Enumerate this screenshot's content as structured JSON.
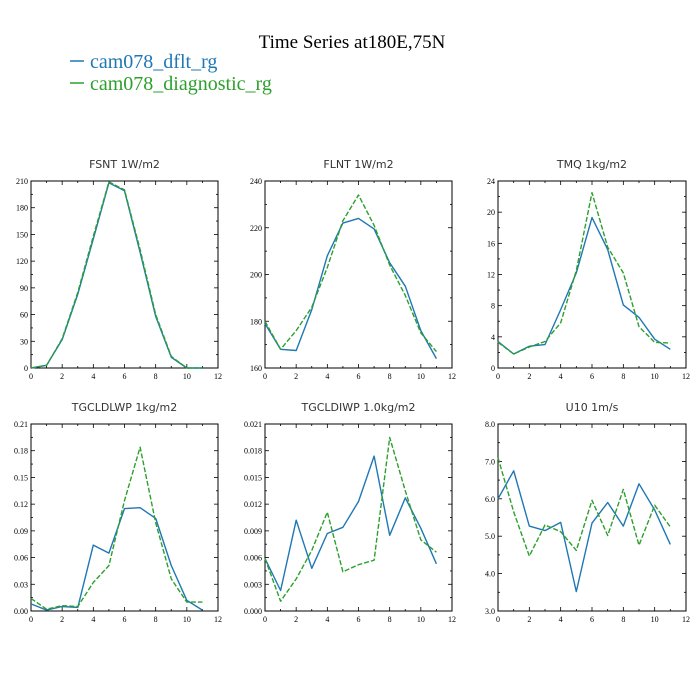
{
  "figure": {
    "title": "Time Series at180E,75N",
    "series_colors": [
      "#1f77b4",
      "#2ca02c"
    ]
  },
  "chart_data": [
    {
      "type": "line",
      "title": "FSNT   1W/m2",
      "xlim": [
        0,
        12
      ],
      "ylim": [
        0,
        210
      ],
      "xticks": [
        0,
        2,
        4,
        6,
        8,
        10,
        12
      ],
      "yticks": [
        0,
        30,
        60,
        90,
        120,
        150,
        180,
        210
      ],
      "ytick_labels": [
        "0",
        "30",
        "60",
        "90",
        "120",
        "150",
        "180",
        "210"
      ],
      "x": [
        0,
        1,
        2,
        3,
        4,
        5,
        6,
        7,
        8,
        9,
        10,
        11
      ],
      "series": [
        {
          "name": "cam078_dflt_rg",
          "color": "#1f77b4",
          "dash": false,
          "values": [
            0,
            3,
            32,
            83,
            145,
            208,
            199,
            130,
            58,
            12,
            0,
            0
          ]
        },
        {
          "name": "cam078_diagnostic_rg",
          "color": "#2ca02c",
          "dash": true,
          "values": [
            0,
            3,
            33,
            85,
            148,
            209,
            200,
            133,
            60,
            13,
            0,
            0
          ]
        }
      ]
    },
    {
      "type": "line",
      "title": "FLNT   1W/m2",
      "xlim": [
        0,
        12
      ],
      "ylim": [
        160,
        240
      ],
      "xticks": [
        0,
        2,
        4,
        6,
        8,
        10,
        12
      ],
      "yticks": [
        160,
        180,
        200,
        220,
        240
      ],
      "ytick_labels": [
        "160",
        "180",
        "200",
        "220",
        "240"
      ],
      "x": [
        0,
        1,
        2,
        3,
        4,
        5,
        6,
        7,
        8,
        9,
        10,
        11
      ],
      "series": [
        {
          "name": "cam078_dflt_rg",
          "color": "#1f77b4",
          "dash": false,
          "values": [
            179,
            168,
            167.5,
            185,
            208,
            222,
            224,
            219.5,
            205,
            195,
            176,
            164
          ]
        },
        {
          "name": "cam078_diagnostic_rg",
          "color": "#2ca02c",
          "dash": true,
          "values": [
            180,
            168,
            176,
            186,
            203,
            223,
            234,
            221,
            204,
            191,
            175,
            167
          ]
        }
      ]
    },
    {
      "type": "line",
      "title": "TMQ   1kg/m2",
      "xlim": [
        0,
        12
      ],
      "ylim": [
        0,
        24
      ],
      "xticks": [
        0,
        2,
        4,
        6,
        8,
        10,
        12
      ],
      "yticks": [
        0,
        4,
        8,
        12,
        16,
        20,
        24
      ],
      "ytick_labels": [
        "0",
        "4",
        "8",
        "12",
        "16",
        "20",
        "24"
      ],
      "x": [
        0,
        1,
        2,
        3,
        4,
        5,
        6,
        7,
        8,
        9,
        10,
        11
      ],
      "series": [
        {
          "name": "cam078_dflt_rg",
          "color": "#1f77b4",
          "dash": false,
          "values": [
            3.4,
            1.8,
            2.8,
            3.0,
            7.5,
            12.2,
            19.3,
            15.2,
            8.1,
            6.5,
            3.7,
            2.4
          ]
        },
        {
          "name": "cam078_diagnostic_rg",
          "color": "#2ca02c",
          "dash": true,
          "values": [
            3.3,
            1.8,
            2.7,
            3.4,
            5.8,
            12.5,
            22.5,
            15.5,
            12.2,
            5.3,
            3.3,
            3.2
          ]
        }
      ]
    },
    {
      "type": "line",
      "title": "TGCLDLWP   1kg/m2",
      "xlim": [
        0,
        12
      ],
      "ylim": [
        0,
        0.21
      ],
      "xticks": [
        0,
        2,
        4,
        6,
        8,
        10,
        12
      ],
      "yticks": [
        0,
        0.03,
        0.06,
        0.09,
        0.12,
        0.15,
        0.18,
        0.21
      ],
      "ytick_labels": [
        "0.00",
        "0.03",
        "0.06",
        "0.09",
        "0.12",
        "0.15",
        "0.18",
        "0.21"
      ],
      "x": [
        0,
        1,
        2,
        3,
        4,
        5,
        6,
        7,
        8,
        9,
        10,
        11
      ],
      "series": [
        {
          "name": "cam078_dflt_rg",
          "color": "#1f77b4",
          "dash": false,
          "values": [
            0.008,
            0.001,
            0.005,
            0.004,
            0.074,
            0.065,
            0.115,
            0.116,
            0.104,
            0.051,
            0.012,
            0.001
          ]
        },
        {
          "name": "cam078_diagnostic_rg",
          "color": "#2ca02c",
          "dash": true,
          "values": [
            0.014,
            0.002,
            0.006,
            0.005,
            0.032,
            0.051,
            0.124,
            0.184,
            0.099,
            0.036,
            0.01,
            0.01
          ]
        }
      ]
    },
    {
      "type": "line",
      "title": "TGCLDIWP   1.0kg/m2",
      "xlim": [
        0,
        12
      ],
      "ylim": [
        0,
        0.021
      ],
      "xticks": [
        0,
        2,
        4,
        6,
        8,
        10,
        12
      ],
      "yticks": [
        0,
        0.003,
        0.006,
        0.009,
        0.012,
        0.015,
        0.018,
        0.021
      ],
      "ytick_labels": [
        "0.000",
        "0.003",
        "0.006",
        "0.009",
        "0.012",
        "0.015",
        "0.018",
        "0.021"
      ],
      "x": [
        0,
        1,
        2,
        3,
        4,
        5,
        6,
        7,
        8,
        9,
        10,
        11
      ],
      "series": [
        {
          "name": "cam078_dflt_rg",
          "color": "#1f77b4",
          "dash": false,
          "values": [
            0.0059,
            0.0023,
            0.0102,
            0.0048,
            0.0087,
            0.0094,
            0.0123,
            0.0174,
            0.0085,
            0.0127,
            0.0093,
            0.0053
          ]
        },
        {
          "name": "cam078_diagnostic_rg",
          "color": "#2ca02c",
          "dash": true,
          "values": [
            0.0059,
            0.0011,
            0.0036,
            0.0068,
            0.0111,
            0.0044,
            0.0052,
            0.0057,
            0.0195,
            0.0135,
            0.008,
            0.0066
          ]
        }
      ]
    },
    {
      "type": "line",
      "title": "U10   1m/s",
      "xlim": [
        0,
        12
      ],
      "ylim": [
        3,
        8
      ],
      "xticks": [
        0,
        2,
        4,
        6,
        8,
        10,
        12
      ],
      "yticks": [
        3,
        4,
        5,
        6,
        7,
        8
      ],
      "ytick_labels": [
        "3.0",
        "4.0",
        "5.0",
        "6.0",
        "7.0",
        "8.0"
      ],
      "x": [
        0,
        1,
        2,
        3,
        4,
        5,
        6,
        7,
        8,
        9,
        10,
        11
      ],
      "series": [
        {
          "name": "cam078_dflt_rg",
          "color": "#1f77b4",
          "dash": false,
          "values": [
            6.0,
            6.75,
            5.27,
            5.15,
            5.37,
            3.52,
            5.35,
            5.9,
            5.27,
            6.4,
            5.7,
            4.78
          ]
        },
        {
          "name": "cam078_diagnostic_rg",
          "color": "#2ca02c",
          "dash": true,
          "values": [
            7.1,
            5.65,
            4.47,
            5.3,
            5.12,
            4.62,
            5.96,
            5.02,
            6.25,
            4.76,
            5.83,
            5.25
          ]
        }
      ]
    }
  ]
}
